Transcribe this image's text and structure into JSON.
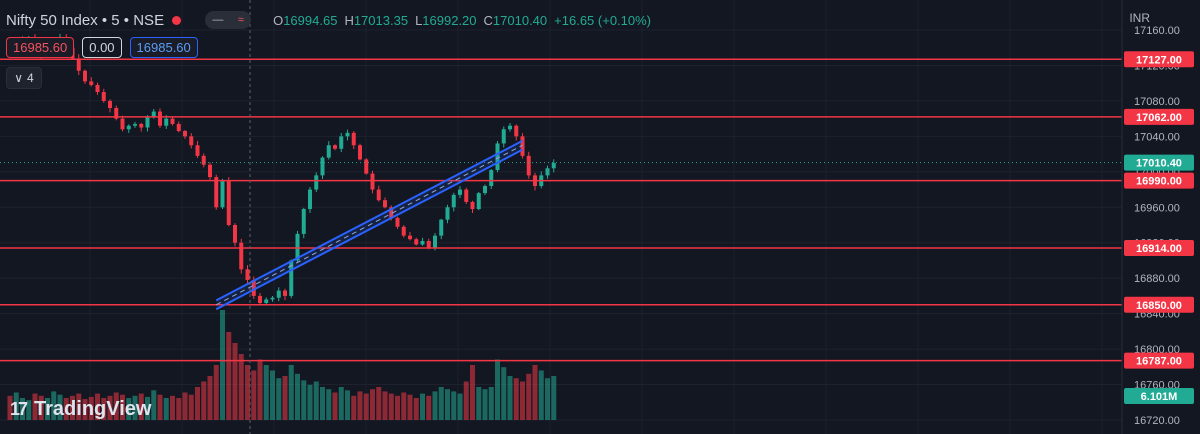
{
  "header": {
    "symbol_title": "Nifty 50 Index • 5 • NSE",
    "toggle_left": "—",
    "toggle_right": "≈",
    "ohlc": {
      "open_label": "O",
      "open": "16994.65",
      "high_label": "H",
      "high": "17013.35",
      "low_label": "L",
      "low": "16992.20",
      "close_label": "C",
      "close": "17010.40",
      "change": "+16.65 (+0.10%)"
    },
    "sell_price": "16985.60",
    "spread": "0.00",
    "buy_price": "16985.60",
    "indicators_count": "4",
    "collapse_glyph": "∨",
    "currency": "INR"
  },
  "brand": {
    "logo": "17",
    "name": "TradingView"
  },
  "colors": {
    "background": "#131722",
    "up": "#22ab94",
    "down": "#f23645",
    "level": "#f23645",
    "channel": "#2962ff"
  },
  "chart_data": {
    "type": "candlestick",
    "y_axis_ticks": [
      "17160.00",
      "17120.00",
      "17080.00",
      "17040.00",
      "17000.00",
      "16960.00",
      "16920.00",
      "16880.00",
      "16840.00",
      "16800.00",
      "16760.00",
      "16720.00"
    ],
    "ylim": [
      16720,
      17160
    ],
    "horizontal_levels": [
      "17127.00",
      "17062.00",
      "16990.00",
      "16914.00",
      "16850.00",
      "16787.00"
    ],
    "last_price": "17010.40",
    "volume_label": "6.101M",
    "channel": {
      "start_index": 33,
      "end_index": 82,
      "start_price": 16850,
      "end_price": 17030,
      "width": 10
    },
    "close_path": [
      17140,
      17142,
      17150,
      17152,
      17140,
      17132,
      17136,
      17146,
      17152,
      17140,
      17128,
      17114,
      17102,
      17098,
      17090,
      17080,
      17072,
      17060,
      17048,
      17052,
      17054,
      17050,
      17062,
      17068,
      17052,
      17060,
      17054,
      17046,
      17040,
      17030,
      17018,
      17008,
      16994,
      16960,
      16990,
      16940,
      16920,
      16890,
      16878,
      16860,
      16852,
      16856,
      16858,
      16866,
      16860,
      16900,
      16930,
      16958,
      16980,
      16996,
      17016,
      17030,
      17026,
      17040,
      17044,
      17030,
      17014,
      16998,
      16980,
      16968,
      16960,
      16948,
      16938,
      16928,
      16924,
      16918,
      16922,
      16914,
      16928,
      16946,
      16960,
      16974,
      16980,
      16966,
      16958,
      16976,
      16984,
      17002,
      17032,
      17048,
      17052,
      17040,
      17018,
      16996,
      16984,
      16996,
      17004,
      17010
    ],
    "volume_relative": [
      0.22,
      0.25,
      0.2,
      0.18,
      0.24,
      0.22,
      0.2,
      0.26,
      0.23,
      0.2,
      0.22,
      0.24,
      0.19,
      0.21,
      0.24,
      0.2,
      0.22,
      0.25,
      0.23,
      0.2,
      0.22,
      0.24,
      0.21,
      0.27,
      0.23,
      0.2,
      0.22,
      0.2,
      0.25,
      0.23,
      0.3,
      0.35,
      0.4,
      0.5,
      1.0,
      0.8,
      0.7,
      0.6,
      0.5,
      0.45,
      0.55,
      0.5,
      0.45,
      0.38,
      0.4,
      0.5,
      0.42,
      0.36,
      0.32,
      0.35,
      0.3,
      0.28,
      0.25,
      0.3,
      0.27,
      0.22,
      0.26,
      0.24,
      0.28,
      0.3,
      0.26,
      0.24,
      0.22,
      0.25,
      0.23,
      0.2,
      0.24,
      0.22,
      0.26,
      0.3,
      0.28,
      0.26,
      0.24,
      0.35,
      0.5,
      0.3,
      0.28,
      0.3,
      0.55,
      0.48,
      0.4,
      0.38,
      0.35,
      0.42,
      0.5,
      0.45,
      0.38,
      0.4
    ]
  }
}
